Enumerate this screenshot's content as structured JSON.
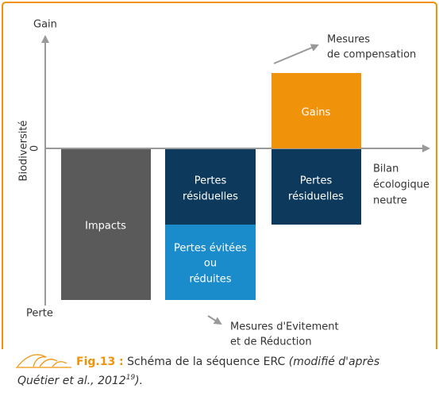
{
  "axis": {
    "top_label": "Gain",
    "bottom_label": "Perte",
    "y_label": "Biodiversité",
    "zero_label": "0"
  },
  "columns": [
    {
      "boxes": [
        {
          "label_lines": [
            "Impacts"
          ]
        }
      ]
    },
    {
      "boxes": [
        {
          "label_lines": [
            "Pertes",
            "résiduelles"
          ]
        },
        {
          "label_lines": [
            "Pertes évitées",
            "ou",
            "réduites"
          ]
        }
      ]
    },
    {
      "boxes": [
        {
          "label_lines": [
            "Gains"
          ]
        },
        {
          "label_lines": [
            "Pertes",
            "résiduelles"
          ]
        }
      ]
    }
  ],
  "annotations": {
    "compensation": [
      "Mesures",
      "de compensation"
    ],
    "avoidance": [
      "Mesures  d'Evitement",
      "et de Réduction"
    ],
    "balance": [
      "Bilan",
      "écologique",
      "neutre"
    ]
  },
  "caption": {
    "figure_number": "Fig.13 :",
    "text": "Schéma de la séquence ERC",
    "source_line1": "(modifié d'après",
    "source_line2": "Quétier et al., 2012",
    "superscript": "19",
    "closing": ")."
  }
}
